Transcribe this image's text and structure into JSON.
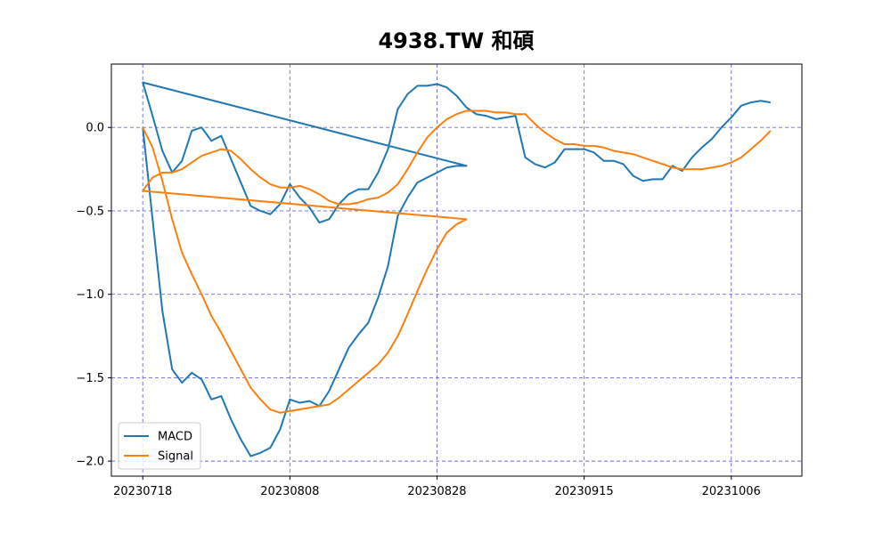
{
  "chart_data": {
    "type": "line",
    "title": "4938.TW 和碩",
    "x": [
      0,
      1,
      2,
      3,
      4,
      5,
      6,
      7,
      8,
      9,
      10,
      11,
      12,
      13,
      14,
      15,
      16,
      17,
      18,
      19,
      20,
      21,
      22,
      23,
      24,
      25,
      26,
      27,
      28,
      29,
      30,
      31,
      32,
      33,
      0,
      1,
      2,
      3,
      4,
      5,
      6,
      7,
      8,
      9,
      10,
      11,
      12,
      13,
      14,
      15,
      16,
      17,
      18,
      19,
      20,
      21,
      22,
      23,
      24,
      25,
      26,
      27,
      28,
      29,
      30,
      31,
      32,
      33,
      34,
      35,
      36,
      37,
      38,
      39,
      40,
      41,
      42,
      43,
      44,
      45,
      46,
      47,
      48,
      49,
      50,
      51,
      52,
      53,
      54,
      55,
      56,
      57,
      58,
      59,
      60,
      61,
      62,
      63,
      64
    ],
    "series": [
      {
        "name": "MACD",
        "color": "#1f77b4",
        "values": [
          0,
          -0.55,
          -1.1,
          -1.45,
          -1.53,
          -1.47,
          -1.51,
          -1.63,
          -1.61,
          -1.75,
          -1.87,
          -1.97,
          -1.95,
          -1.92,
          -1.81,
          -1.63,
          -1.65,
          -1.64,
          -1.67,
          -1.58,
          -1.45,
          -1.32,
          -1.24,
          -1.17,
          -1.02,
          -0.83,
          -0.53,
          -0.42,
          -0.33,
          -0.3,
          -0.27,
          -0.24,
          -0.23,
          -0.23,
          0.27,
          0.07,
          -0.14,
          -0.27,
          -0.2,
          -0.02,
          0.0,
          -0.08,
          -0.05,
          -0.19,
          -0.33,
          -0.47,
          -0.5,
          -0.52,
          -0.46,
          -0.34,
          -0.42,
          -0.48,
          -0.57,
          -0.55,
          -0.46,
          -0.4,
          -0.37,
          -0.37,
          -0.27,
          -0.13,
          0.11,
          0.2,
          0.25,
          0.25,
          0.26,
          0.24,
          0.19,
          0.12,
          0.08,
          0.07,
          0.05,
          0.06,
          0.07,
          -0.18,
          -0.22,
          -0.24,
          -0.21,
          -0.13,
          -0.13,
          -0.13,
          -0.15,
          -0.2,
          -0.2,
          -0.22,
          -0.29,
          -0.32,
          -0.31,
          -0.31,
          -0.23,
          -0.26,
          -0.18,
          -0.12,
          -0.07,
          0.0,
          0.06,
          0.13,
          0.15,
          0.16,
          0.15
        ]
      },
      {
        "name": "Signal",
        "color": "#ff7f0e",
        "values": [
          0,
          -0.12,
          -0.32,
          -0.55,
          -0.75,
          -0.88,
          -1.0,
          -1.13,
          -1.23,
          -1.34,
          -1.45,
          -1.56,
          -1.63,
          -1.69,
          -1.71,
          -1.7,
          -1.69,
          -1.68,
          -1.67,
          -1.66,
          -1.62,
          -1.57,
          -1.52,
          -1.47,
          -1.42,
          -1.35,
          -1.25,
          -1.12,
          -0.98,
          -0.85,
          -0.73,
          -0.63,
          -0.58,
          -0.55,
          -0.38,
          -0.3,
          -0.27,
          -0.27,
          -0.25,
          -0.21,
          -0.17,
          -0.15,
          -0.13,
          -0.14,
          -0.19,
          -0.25,
          -0.3,
          -0.34,
          -0.36,
          -0.36,
          -0.35,
          -0.37,
          -0.4,
          -0.44,
          -0.46,
          -0.46,
          -0.45,
          -0.43,
          -0.42,
          -0.39,
          -0.34,
          -0.25,
          -0.15,
          -0.06,
          0.0,
          0.05,
          0.08,
          0.1,
          0.1,
          0.1,
          0.09,
          0.09,
          0.08,
          0.08,
          0.02,
          -0.03,
          -0.07,
          -0.1,
          -0.1,
          -0.11,
          -0.11,
          -0.12,
          -0.14,
          -0.15,
          -0.16,
          -0.18,
          -0.2,
          -0.22,
          -0.24,
          -0.25,
          -0.25,
          -0.25,
          -0.24,
          -0.23,
          -0.21,
          -0.18,
          -0.13,
          -0.08,
          -0.02
        ]
      }
    ],
    "xlim": [
      -3.2,
      67.2
    ],
    "xticks": [
      {
        "value": 0,
        "label": "20230718"
      },
      {
        "value": 15,
        "label": "20230808"
      },
      {
        "value": 30,
        "label": "20230828"
      },
      {
        "value": 45,
        "label": "20230915"
      },
      {
        "value": 60,
        "label": "20231006"
      }
    ],
    "ylim": [
      -2.09,
      0.38
    ],
    "yticks": [
      {
        "value": -2,
        "label": "−2.0"
      },
      {
        "value": -1.5,
        "label": "−1.5"
      },
      {
        "value": -1,
        "label": "−1.0"
      },
      {
        "value": -0.5,
        "label": "−0.5"
      },
      {
        "value": 0,
        "label": "0.0"
      }
    ],
    "grid": true,
    "legend": "lower left"
  }
}
